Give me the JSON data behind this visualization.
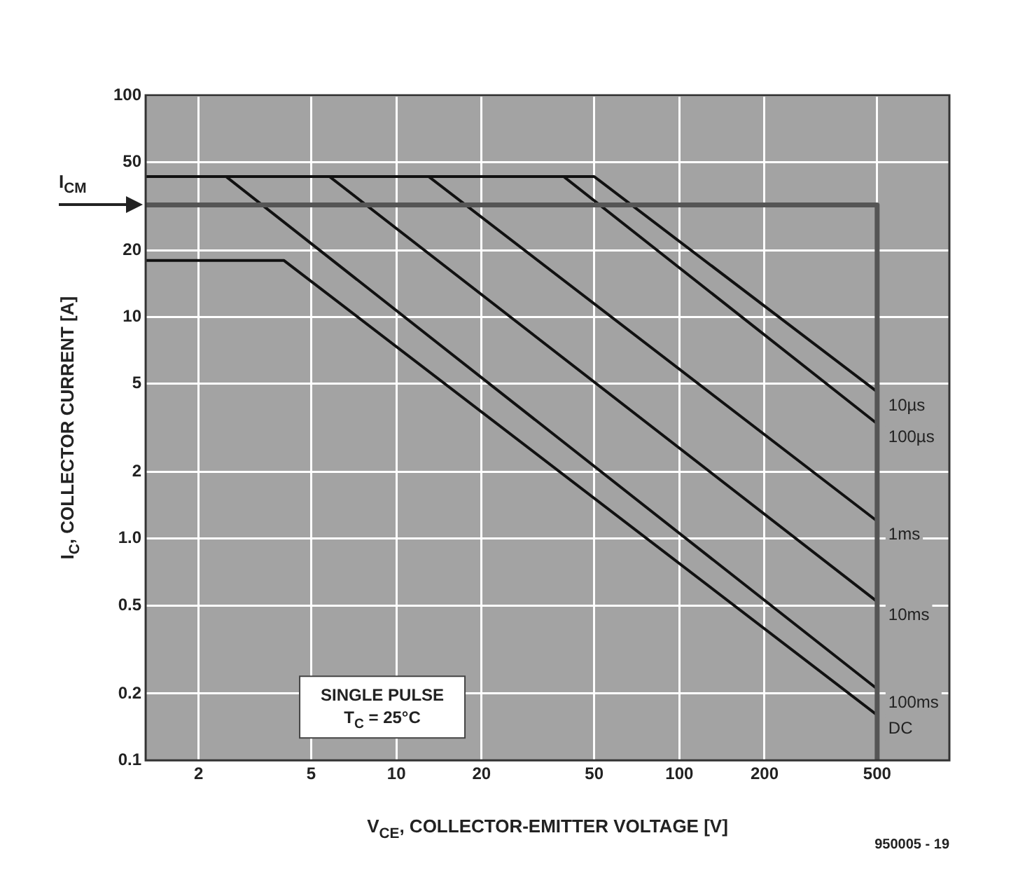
{
  "chart_data": {
    "type": "line",
    "xlabel": "V$_{CE}$, COLLECTOR-EMITTER VOLTAGE [V]",
    "ylabel": "I$_{C}$, COLLECTOR CURRENT [A]",
    "log": "xy",
    "grid": true,
    "legend": false,
    "marker": "none",
    "line_style": "solid",
    "xlim": [
      1.3,
      900
    ],
    "xticks": [
      2,
      5,
      10,
      20,
      50,
      100,
      200,
      500
    ],
    "ylim": [
      0.1,
      100
    ],
    "yticks": [
      100,
      50,
      20,
      10,
      5,
      2,
      {
        "value": 1,
        "label": "1.0"
      },
      0.5,
      0.2,
      0.1
    ],
    "series": [
      {
        "color": "#555555",
        "x": [
          1.3,
          500,
          500
        ],
        "values": [
          32,
          32,
          0.1
        ]
      },
      {
        "name": "10µs",
        "color": "#111111",
        "x": [
          1.3,
          50,
          500
        ],
        "values": [
          43,
          43,
          4.6
        ]
      },
      {
        "name": "100µs",
        "color": "#111111",
        "x": [
          1.3,
          39,
          500
        ],
        "values": [
          43,
          43,
          3.3
        ]
      },
      {
        "name": "1ms",
        "color": "#111111",
        "x": [
          1.3,
          13,
          500
        ],
        "values": [
          43,
          43,
          1.2
        ]
      },
      {
        "name": "10ms",
        "color": "#111111",
        "x": [
          1.3,
          5.8,
          500
        ],
        "values": [
          43,
          43,
          0.52
        ]
      },
      {
        "name": "100ms",
        "color": "#111111",
        "x": [
          1.3,
          2.5,
          500
        ],
        "values": [
          43,
          43,
          0.21
        ]
      },
      {
        "name": "DC",
        "color": "#111111",
        "x": [
          1.3,
          4,
          500
        ],
        "values": [
          18,
          18,
          0.16
        ]
      }
    ],
    "annotations": [
      "I$_{CM}$",
      "SINGLE PULSE",
      "T$_{C}$ = 25°C",
      "950005 - 19"
    ]
  }
}
